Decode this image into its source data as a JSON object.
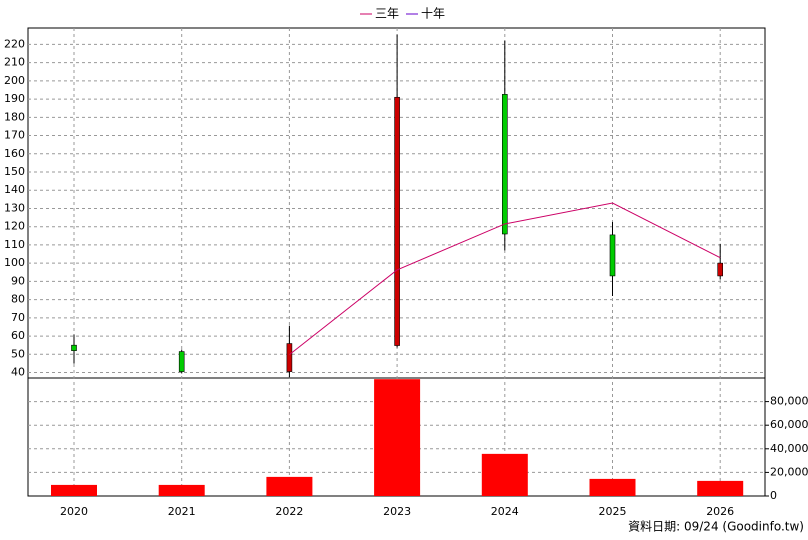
{
  "chart_data": {
    "type": "candlestick",
    "categories": [
      "2020",
      "2021",
      "2022",
      "2023",
      "2024",
      "2025",
      "2026"
    ],
    "open": [
      55,
      51.5,
      40.5,
      54.8,
      192.6,
      115.5,
      93
    ],
    "high": [
      60.8,
      52.6,
      65.7,
      225.4,
      222,
      122.6,
      110.6
    ],
    "low": [
      44.9,
      39.5,
      37.3,
      53.7,
      107,
      82,
      91
    ],
    "close": [
      52,
      40.5,
      55.9,
      191,
      116,
      93,
      100
    ],
    "up_color": "#cc0000",
    "down_color": "#00cc00",
    "series": [
      {
        "name": "三年",
        "color": "#cc0066",
        "values": [
          null,
          null,
          49.8,
          96.3,
          121.5,
          133,
          103
        ]
      },
      {
        "name": "十年",
        "color": "#6600cc",
        "values": [
          null,
          null,
          null,
          null,
          null,
          null,
          null
        ]
      }
    ],
    "volume": [
      9400,
      9400,
      16200,
      99000,
      35700,
      14500,
      12800
    ],
    "volume_color": "#ff0000",
    "ylim": [
      37,
      229
    ],
    "yticks": [
      40,
      50,
      60,
      70,
      80,
      90,
      100,
      110,
      120,
      130,
      140,
      150,
      160,
      170,
      180,
      190,
      200,
      210,
      220
    ],
    "y2lim": [
      0,
      100000
    ],
    "y2ticks": [
      0,
      {
        "value": 20000,
        "label": "20,000"
      },
      {
        "value": 40000,
        "label": "40,000"
      },
      {
        "value": 60000,
        "label": "60,000"
      },
      {
        "value": 80000,
        "label": "80,000"
      }
    ],
    "grid": true,
    "footer": "資料日期: 09/24  (Goodinfo.tw)"
  }
}
